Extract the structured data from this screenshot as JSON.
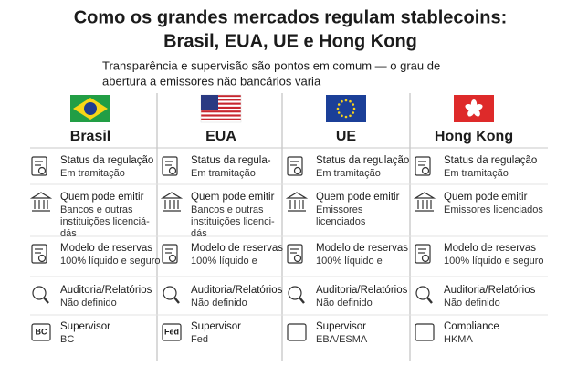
{
  "header": {
    "title_lines": [
      "Como os grandes mercados regulam stablecoins:",
      "Brasil, EUA, UE e Hong Kong"
    ],
    "subtitle_lines": [
      "Transparência e supervisão são pontos em comum — o grau de",
      "abertura a emissores não bancários varia"
    ]
  },
  "columns": [
    {
      "name": "Brasil",
      "rows": [
        {
          "label": "Status da regulação",
          "lines": [
            "Em tramitação"
          ]
        },
        {
          "label": "Quem pode emitir",
          "lines": [
            "Bancos e outras",
            "instituições licenciá-",
            "dás"
          ]
        },
        {
          "label": "Modelo de reservas",
          "lines": [
            "100% líquido e seguro"
          ]
        },
        {
          "label": "Auditoria/Relatórios",
          "lines": [
            "Não definido"
          ]
        },
        {
          "label": "Supervisor",
          "lines": [
            "BC"
          ],
          "icon_text": "BC"
        }
      ]
    },
    {
      "name": "EUA",
      "rows": [
        {
          "label": "Status da regula-",
          "lines": [
            "Em tramitação"
          ]
        },
        {
          "label": "Quem pode emitir",
          "lines": [
            "Bancos e outras",
            "instituições licenci-",
            "dás"
          ]
        },
        {
          "label": "Modelo de reservas",
          "lines": [
            "100% líquido e"
          ]
        },
        {
          "label": "Auditoria/Relatórios",
          "lines": [
            "Não definido"
          ]
        },
        {
          "label": "Supervisor",
          "lines": [
            "Fed"
          ],
          "icon_text": "Fed"
        }
      ]
    },
    {
      "name": "UE",
      "rows": [
        {
          "label": "Status da regulação",
          "lines": [
            "Em tramitação"
          ]
        },
        {
          "label": "Quem pode emitir",
          "lines": [
            "Emissores",
            "licenciados"
          ]
        },
        {
          "label": "Modelo de reservas",
          "lines": [
            "100% líquido e"
          ]
        },
        {
          "label": "Auditoria/Relatórios",
          "lines": [
            "Não definido"
          ]
        },
        {
          "label": "Supervisor",
          "lines": [
            "EBA/ESMA"
          ]
        }
      ]
    },
    {
      "name": "Hong Kong",
      "rows": [
        {
          "label": "Status da regulação",
          "lines": [
            "Em tramitação"
          ]
        },
        {
          "label": "Quem pode emitir",
          "lines": [
            "Emissores licenciados"
          ]
        },
        {
          "label": "Modelo de reservas",
          "lines": [
            "100% líquido e seguro"
          ]
        },
        {
          "label": "Auditoria/Relatórios",
          "lines": [
            "Não definido"
          ]
        },
        {
          "label": "Compliance",
          "lines": [
            "HKMA"
          ]
        }
      ]
    }
  ]
}
